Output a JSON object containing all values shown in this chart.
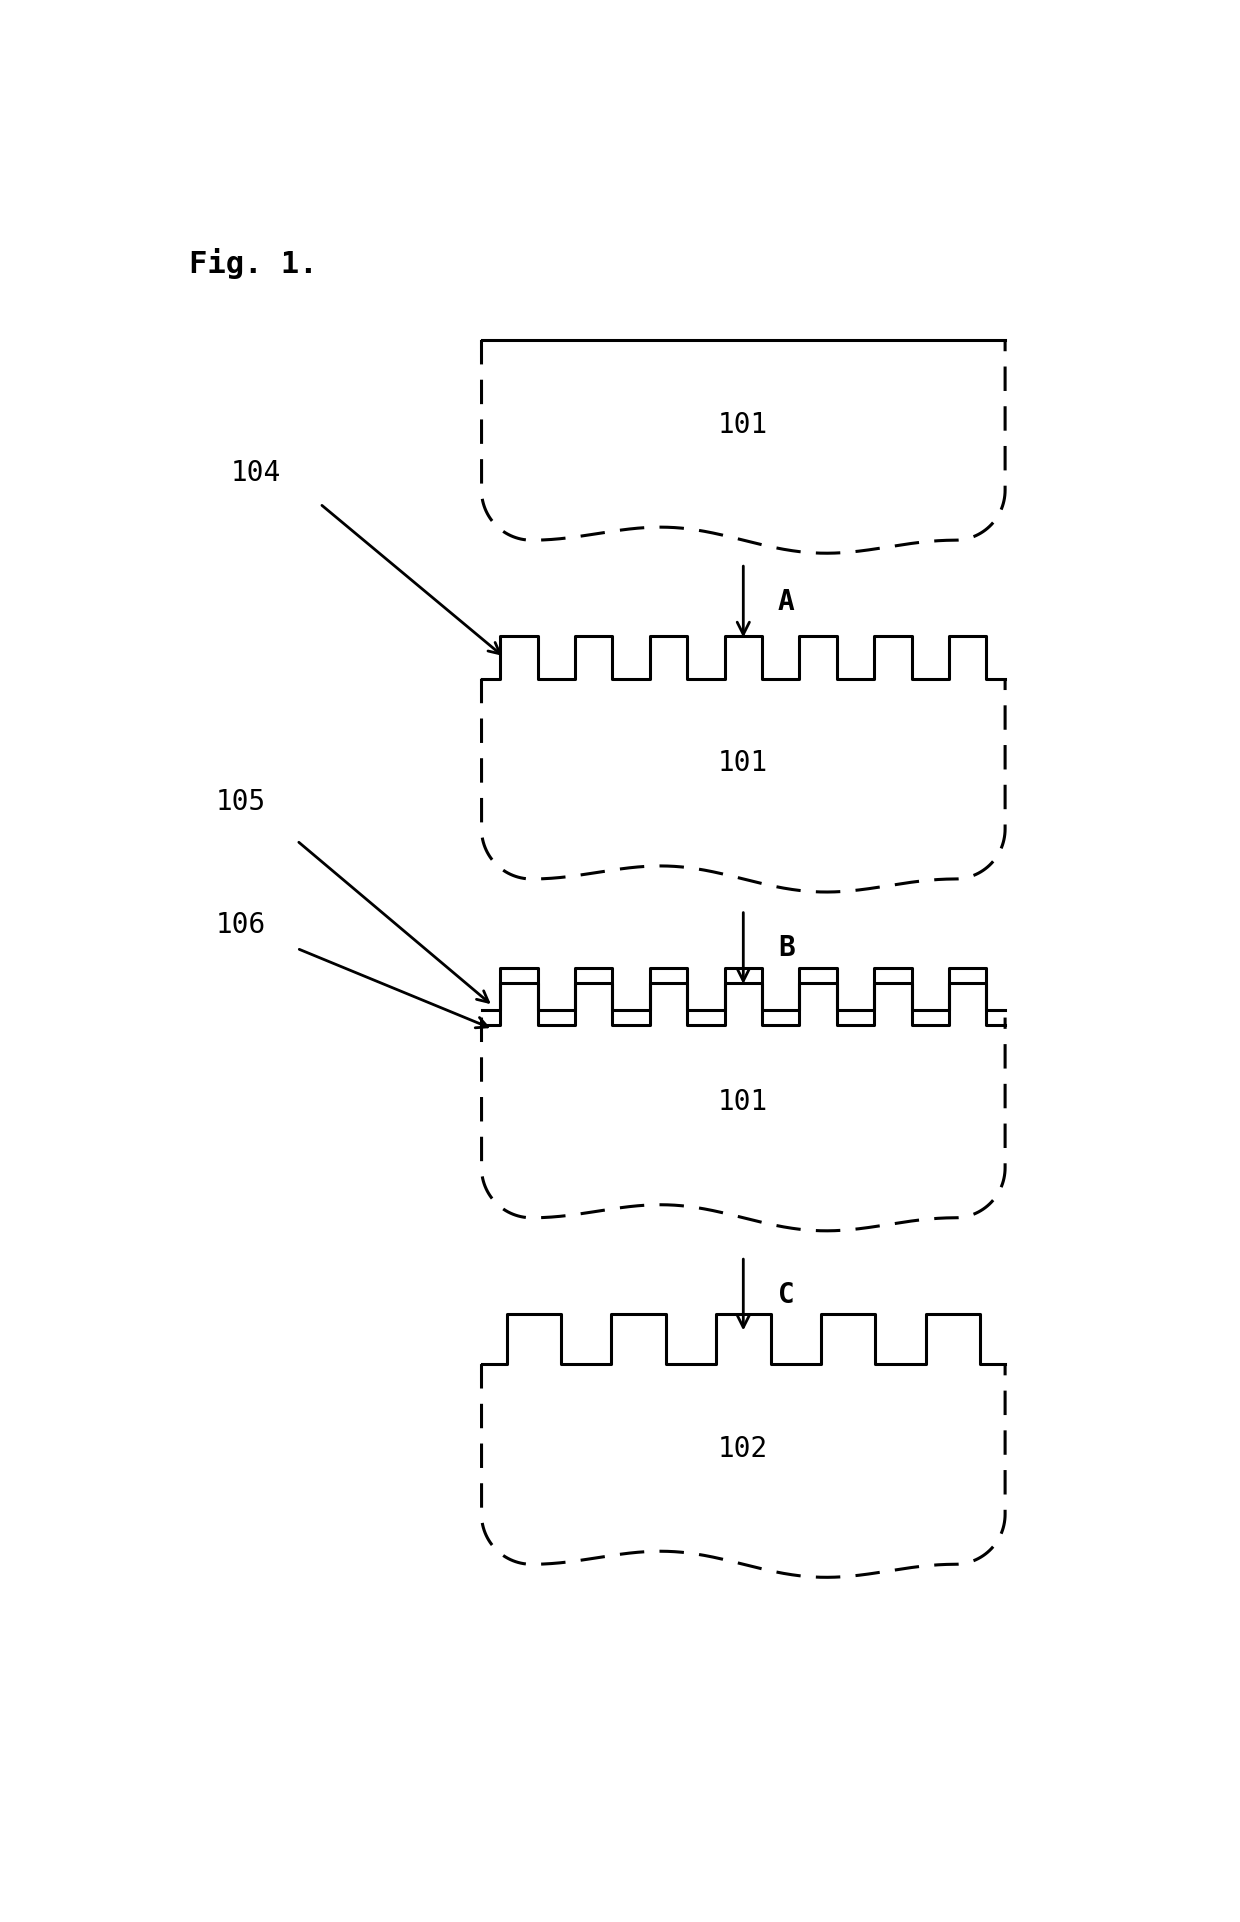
{
  "fig_label": "Fig. 1.",
  "background_color": "#ffffff",
  "line_color": "#000000",
  "step_labels": [
    "A",
    "B",
    "C"
  ],
  "part_labels_1": "101",
  "part_labels_2": "101",
  "part_labels_3": "101",
  "part_labels_4": "102",
  "ref_104": "104",
  "ref_105": "105",
  "ref_106": "106",
  "font_family": "monospace",
  "fig_fontsize": 22,
  "label_fontsize": 20,
  "step_fontsize": 20,
  "lw": 2.2,
  "dash_pattern": [
    8,
    5
  ]
}
